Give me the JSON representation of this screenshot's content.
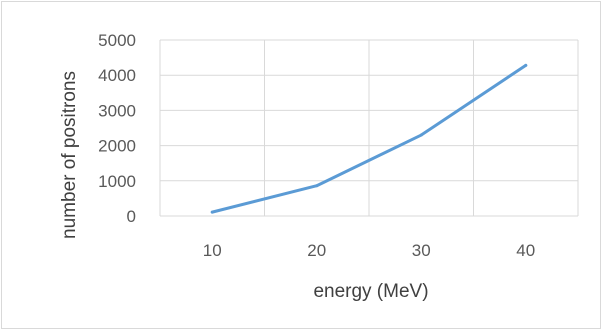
{
  "chart_data": {
    "type": "line",
    "title": "",
    "xlabel": "energy (MeV)",
    "ylabel": "number of positrons",
    "categories": [
      "10",
      "20",
      "30",
      "40"
    ],
    "series": [
      {
        "values": [
          110,
          860,
          2300,
          4280
        ]
      }
    ],
    "ylim": [
      0,
      5000
    ],
    "yticks": [
      "0",
      "1000",
      "2000",
      "3000",
      "4000",
      "5000"
    ],
    "grid": true,
    "legend": "none",
    "colors": {
      "line": "#5b9bd5",
      "grid": "#d9d9d9",
      "tick_text": "#595959",
      "axis_title": "#404040"
    }
  }
}
